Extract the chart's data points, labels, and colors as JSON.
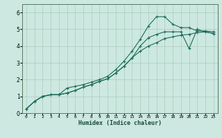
{
  "xlabel": "Humidex (Indice chaleur)",
  "bg_color": "#cce8e0",
  "grid_color": "#aaccbb",
  "line_color": "#1a6b5a",
  "xlim": [
    -0.5,
    23.5
  ],
  "ylim": [
    0,
    6.5
  ],
  "xticks": [
    0,
    1,
    2,
    3,
    4,
    5,
    6,
    7,
    8,
    9,
    10,
    11,
    12,
    13,
    14,
    15,
    16,
    17,
    18,
    19,
    20,
    21,
    22,
    23
  ],
  "yticks": [
    0,
    1,
    2,
    3,
    4,
    5,
    6
  ],
  "series": [
    {
      "x": [
        0,
        1,
        2,
        3,
        4,
        5,
        6,
        7,
        8,
        9,
        10,
        11,
        12,
        13,
        14,
        15,
        16,
        17,
        18,
        19,
        20,
        21,
        22,
        23
      ],
      "y": [
        0.25,
        0.7,
        1.0,
        1.1,
        1.1,
        1.5,
        1.6,
        1.7,
        1.85,
        2.0,
        2.2,
        2.6,
        3.1,
        3.7,
        4.4,
        5.2,
        5.75,
        5.75,
        5.3,
        5.1,
        5.1,
        4.9,
        4.9,
        4.85
      ]
    },
    {
      "x": [
        0,
        1,
        2,
        3,
        4,
        5,
        6,
        7,
        8,
        9,
        10,
        11,
        12,
        13,
        14,
        15,
        16,
        17,
        18,
        19,
        20,
        21,
        22,
        23
      ],
      "y": [
        0.25,
        0.7,
        1.0,
        1.1,
        1.1,
        1.2,
        1.35,
        1.55,
        1.7,
        1.9,
        2.05,
        2.4,
        2.8,
        3.3,
        4.0,
        4.5,
        4.7,
        4.85,
        4.85,
        4.85,
        3.85,
        5.0,
        4.85,
        4.75
      ]
    },
    {
      "x": [
        0,
        1,
        2,
        3,
        4,
        5,
        6,
        7,
        8,
        9,
        10,
        11,
        12,
        13,
        14,
        15,
        16,
        17,
        18,
        19,
        20,
        21,
        22,
        23
      ],
      "y": [
        0.25,
        0.7,
        1.0,
        1.1,
        1.1,
        1.2,
        1.35,
        1.55,
        1.7,
        1.9,
        2.05,
        2.4,
        2.8,
        3.3,
        3.7,
        4.0,
        4.2,
        4.45,
        4.55,
        4.65,
        4.7,
        4.8,
        4.85,
        4.75
      ]
    }
  ]
}
